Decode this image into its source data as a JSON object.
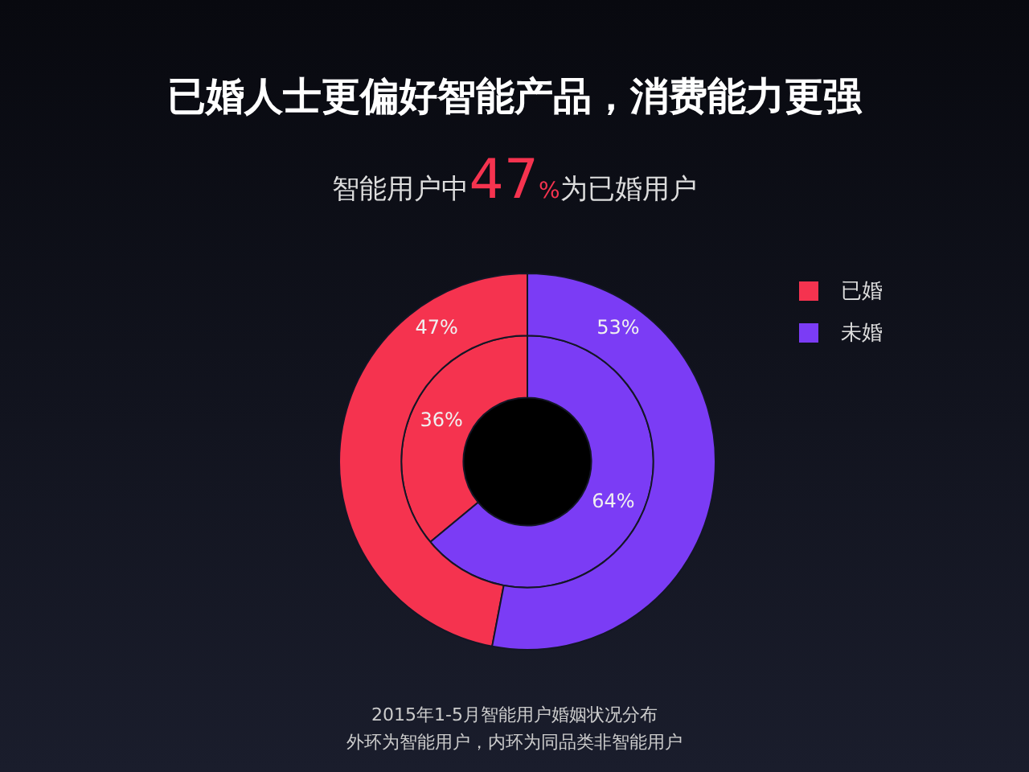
{
  "chart_data": {
    "type": "donut",
    "title": "已婚人士更偏好智能产品，消费能力更强",
    "subtitle": "智能用户中47%为已婚用户",
    "categories": [
      "已婚",
      "未婚"
    ],
    "colors": [
      "#f5334f",
      "#7b3cf5"
    ],
    "series": [
      {
        "values": [
          47,
          53
        ],
        "value_labels": [
          "47%",
          "53%"
        ]
      },
      {
        "values": [
          36,
          64
        ],
        "value_labels": [
          "36%",
          "64%"
        ]
      }
    ],
    "legend": "top right",
    "annotations": [
      "2015年1-5月智能用户婚姻状况分布",
      "外环为智能用户，内环为同品类非智能用户"
    ]
  }
}
